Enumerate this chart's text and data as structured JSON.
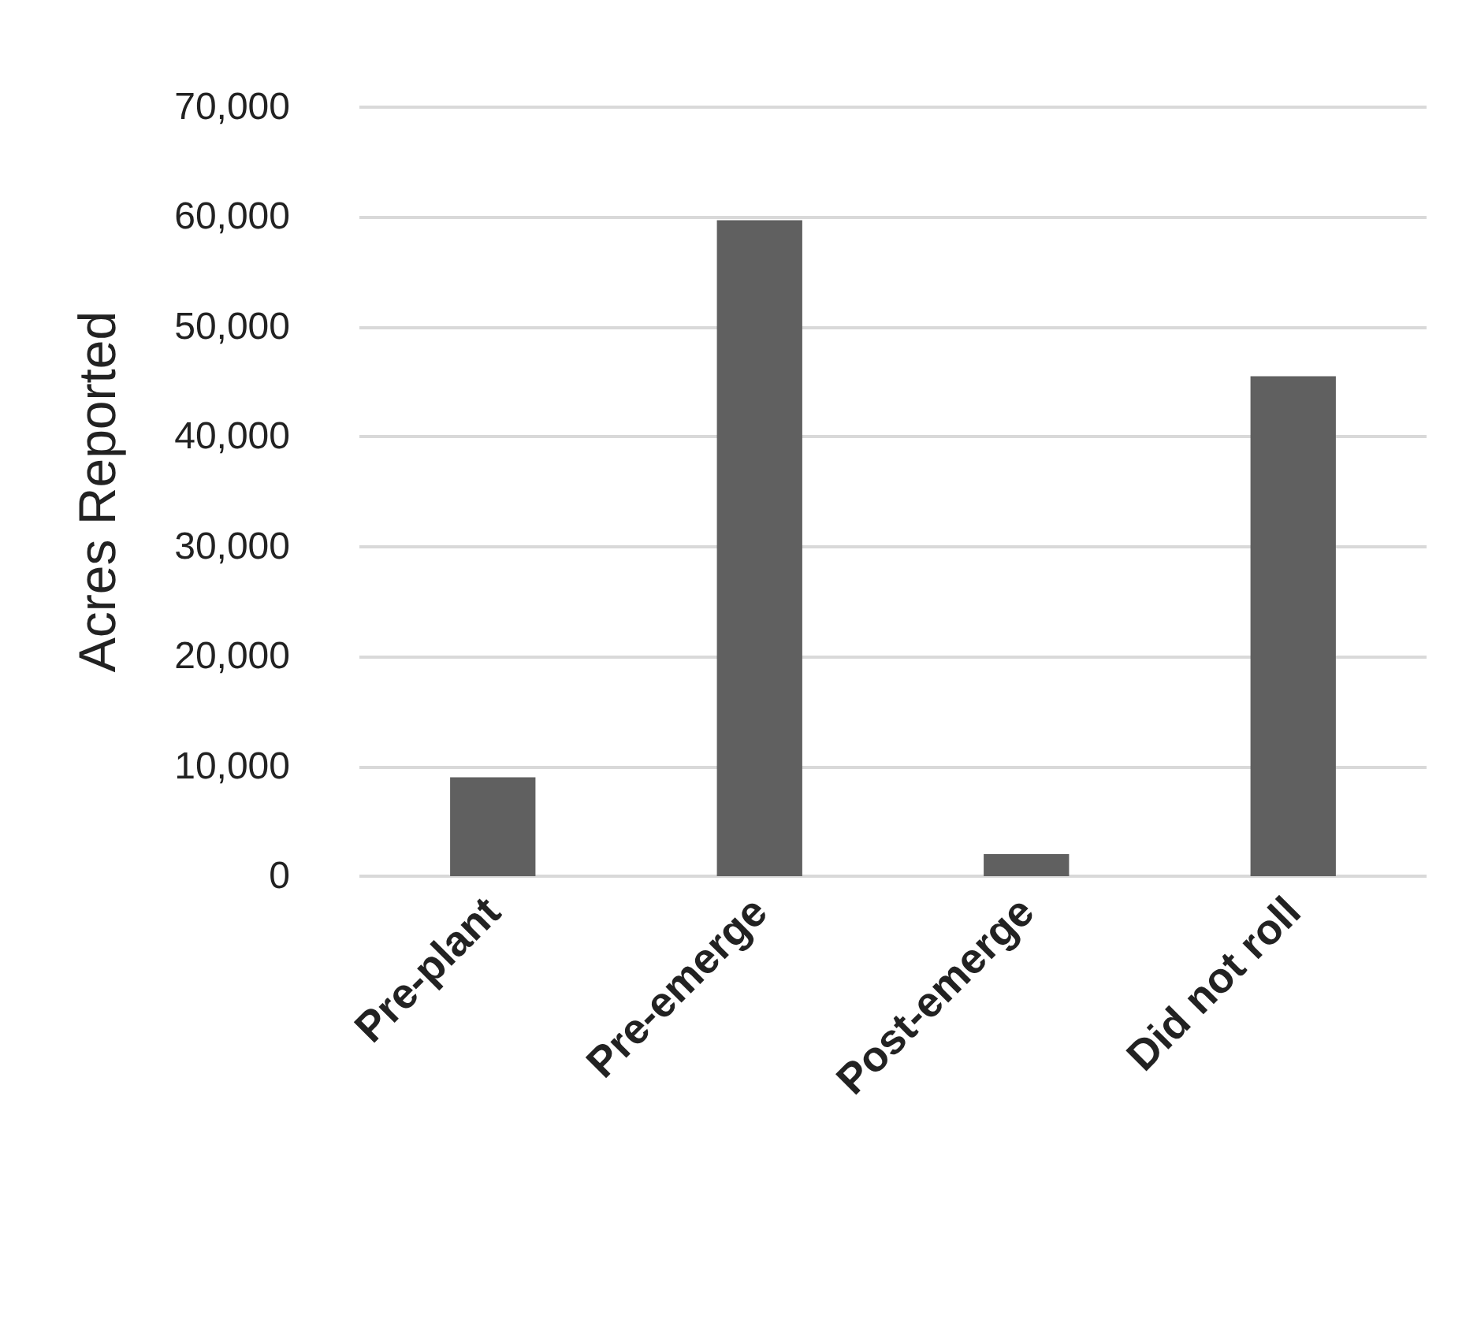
{
  "chart_data": {
    "type": "bar",
    "ylabel": "Acres Reported",
    "categories": [
      "Pre-plant",
      "Pre-emerge",
      "Post-emerge",
      "Did not roll"
    ],
    "values": [
      9000,
      59700,
      2000,
      45500
    ],
    "color": "#606060",
    "ylim": [
      0,
      70000
    ],
    "yticks": [
      0,
      {
        "value": 10000,
        "label": "10,000"
      },
      {
        "value": 20000,
        "label": "20,000"
      },
      {
        "value": 30000,
        "label": "30,000"
      },
      {
        "value": 40000,
        "label": "40,000"
      },
      {
        "value": 50000,
        "label": "50,000"
      },
      {
        "value": 60000,
        "label": "60,000"
      },
      {
        "value": 70000,
        "label": "70,000"
      }
    ],
    "grid": "y"
  }
}
